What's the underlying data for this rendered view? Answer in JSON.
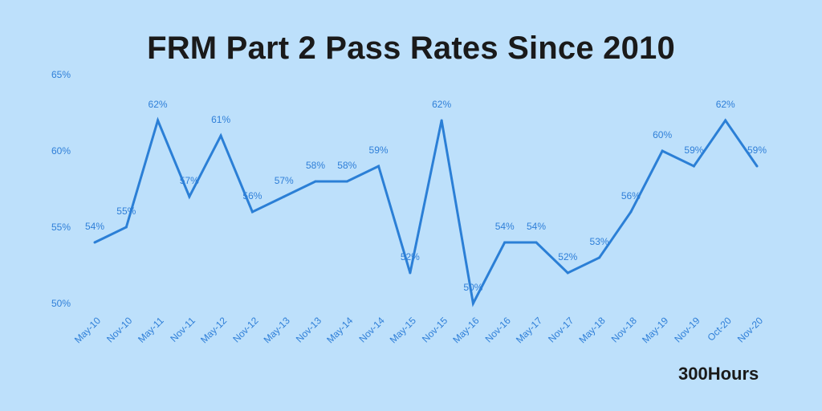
{
  "title": "FRM Part 2 Pass Rates Since 2010",
  "brand": "300Hours",
  "colors": {
    "background": "#bde0fb",
    "line": "#2b7fd6",
    "text": "#2f7fd8"
  },
  "chart_data": {
    "type": "line",
    "title": "FRM Part 2 Pass Rates Since 2010",
    "xlabel": "",
    "ylabel": "",
    "ylim": [
      50,
      65
    ],
    "yticks": [
      "50%",
      "55%",
      "60%",
      "65%"
    ],
    "ytick_values": [
      50,
      55,
      60,
      65
    ],
    "grid": false,
    "categories": [
      "May-10",
      "Nov-10",
      "May-11",
      "Nov-11",
      "May-12",
      "Nov-12",
      "May-13",
      "Nov-13",
      "May-14",
      "Nov-14",
      "May-15",
      "Nov-15",
      "May-16",
      "Nov-16",
      "May-17",
      "Nov-17",
      "May-18",
      "Nov-18",
      "May-19",
      "Nov-19",
      "Oct-20",
      "Nov-20"
    ],
    "values": [
      54,
      55,
      62,
      57,
      61,
      56,
      57,
      58,
      58,
      59,
      52,
      62,
      50,
      54,
      54,
      52,
      53,
      56,
      60,
      59,
      62,
      59
    ],
    "labels": [
      "54%",
      "55%",
      "62%",
      "57%",
      "61%",
      "56%",
      "57%",
      "58%",
      "58%",
      "59%",
      "52%",
      "62%",
      "50%",
      "54%",
      "54%",
      "52%",
      "53%",
      "56%",
      "60%",
      "59%",
      "62%",
      "59%"
    ]
  }
}
